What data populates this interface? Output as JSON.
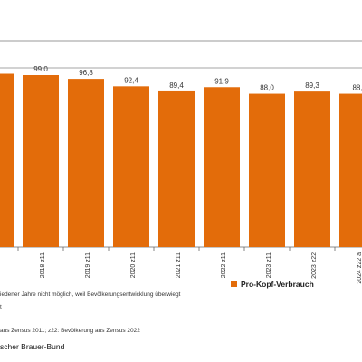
{
  "chart_data": {
    "type": "bar",
    "categories": [
      "",
      "2018 z11",
      "2019 z11",
      "2020 z11",
      "2021 z11",
      "2022 z11",
      "2023 z11",
      "2023 z22",
      "2024 z22 a"
    ],
    "values": [
      null,
      99.0,
      96.8,
      92.4,
      89.4,
      91.9,
      88.0,
      89.3,
      88.0
    ],
    "data_labels": [
      ",0",
      "99,0",
      "96,8",
      "92,4",
      "89,4",
      "91,9",
      "88,0",
      "89,3",
      "88,"
    ],
    "series": [
      {
        "name": "Pro-Kopf-Verbrauch",
        "values": [
          null,
          99.0,
          96.8,
          92.4,
          89.4,
          91.9,
          88.0,
          89.3,
          88.0
        ]
      }
    ],
    "legend": {
      "label": "Pro-Kopf-Verbrauch",
      "placement": "bottom-right",
      "color": "#e36c0a"
    },
    "ylim": [
      0,
      100
    ],
    "grid": false,
    "bar_color": "#e36c0a"
  },
  "notes": {
    "line1": "iedener Jahre nicht möglich, weil Bevölkerungsentwicklung überwiegt",
    "line2": "t",
    "line3": "aus Zensus 2011; z22: Bevölkerung aus Zensus 2022"
  },
  "source": "scher Brauer-Bund"
}
